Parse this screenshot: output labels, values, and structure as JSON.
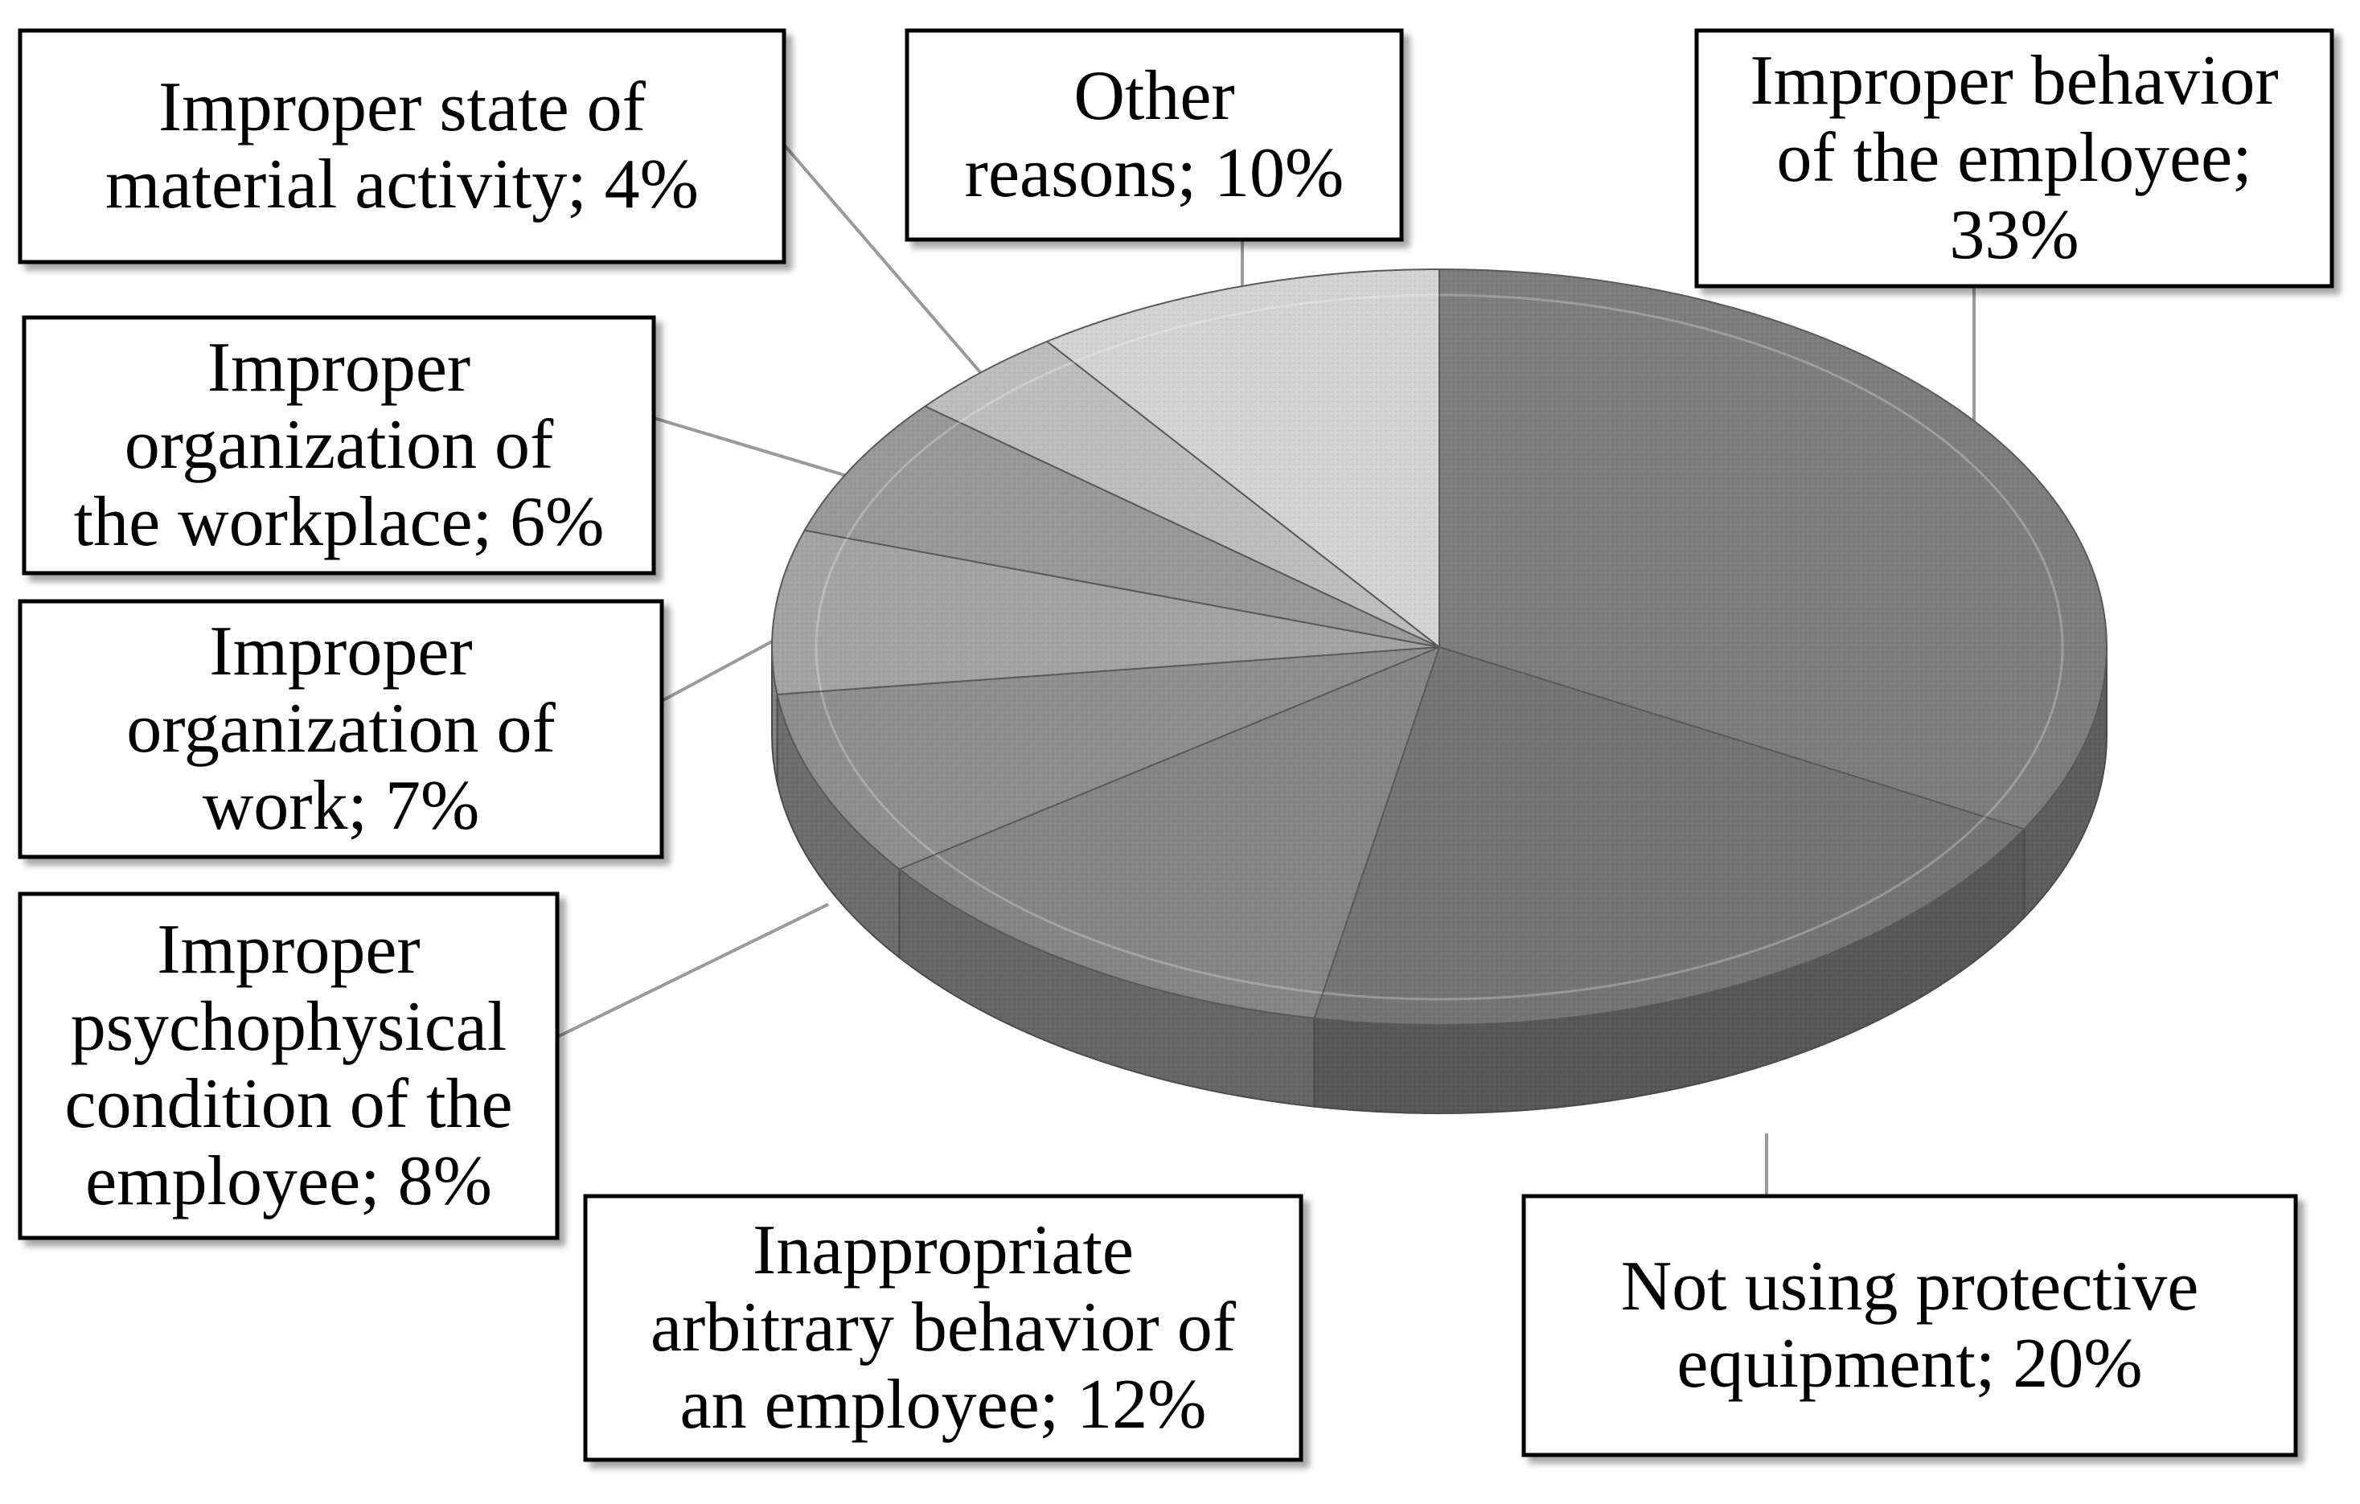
{
  "chart_data": {
    "type": "pie",
    "style": "3d",
    "slices": [
      {
        "label": "Improper behavior of the employee",
        "value": 33,
        "percent_label": "33%",
        "label_lines": [
          "Improper behavior",
          "of the employee;",
          "33%"
        ],
        "color": "#7d7d7d",
        "side_color": "#5e5e5e"
      },
      {
        "label": "Not using protective equipment",
        "value": 20,
        "percent_label": "20%",
        "label_lines": [
          "Not using protective",
          "equipment; 20%"
        ],
        "color": "#747474",
        "side_color": "#575757"
      },
      {
        "label": "Inappropriate arbitrary behavior of an employee",
        "value": 12,
        "percent_label": "12%",
        "label_lines": [
          "Inappropriate",
          "arbitrary behavior of",
          "an employee; 12%"
        ],
        "color": "#858585",
        "side_color": "#666666"
      },
      {
        "label": "Improper psychophysical condition of the employee",
        "value": 8,
        "percent_label": "8%",
        "label_lines": [
          "Improper",
          "psychophysical",
          "condition of the",
          "employee; 8%"
        ],
        "color": "#8e8e8e",
        "side_color": "#6d6d6d"
      },
      {
        "label": "Improper organization of work",
        "value": 7,
        "percent_label": "7%",
        "label_lines": [
          "Improper",
          "organization of",
          "work; 7%"
        ],
        "color": "#a3a3a3",
        "side_color": "#828282"
      },
      {
        "label": "Improper organization of the workplace",
        "value": 6,
        "percent_label": "6%",
        "label_lines": [
          "Improper",
          "organization of",
          "the workplace; 6%"
        ],
        "color": "#989898",
        "side_color": "#787878"
      },
      {
        "label": "Improper state of material activity",
        "value": 4,
        "percent_label": "4%",
        "label_lines": [
          "Improper state of",
          "material activity; 4%"
        ],
        "color": "#bdbdbd",
        "side_color": "#9a9a9a"
      },
      {
        "label": "Other reasons",
        "value": 10,
        "percent_label": "10%",
        "label_lines": [
          "Other",
          "reasons;  10%"
        ],
        "color": "#d3d3d3",
        "side_color": "#b0b0b0"
      }
    ],
    "start_angle_deg": 90,
    "direction": "clockwise",
    "legend": "none",
    "data_labels": "callout boxes with leader lines"
  }
}
